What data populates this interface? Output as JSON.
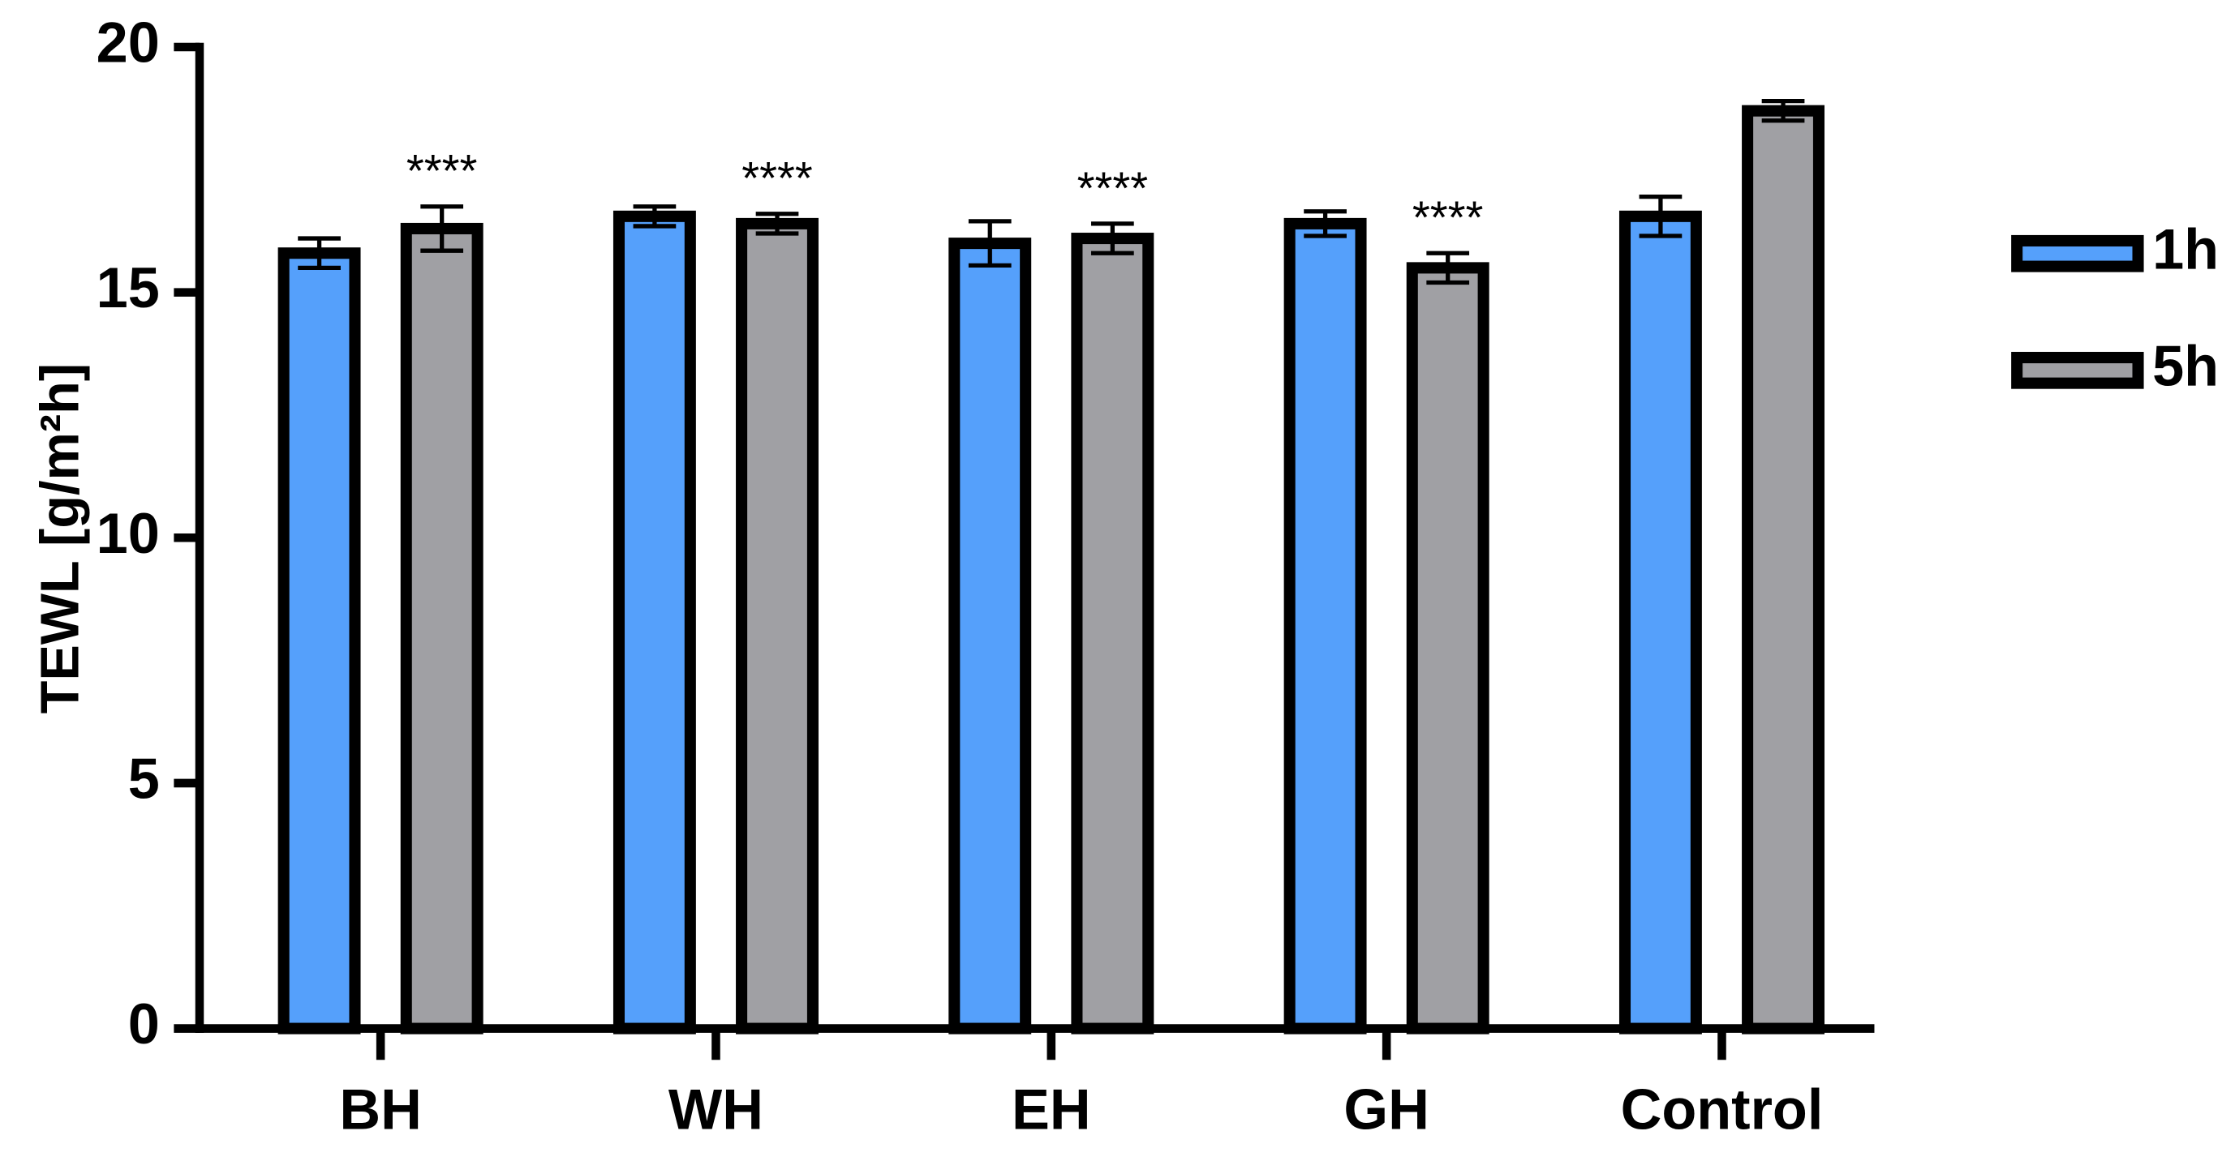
{
  "chart_data": {
    "type": "bar",
    "y_label": "TEWL [g/m²h]",
    "categories": [
      "BH",
      "WH",
      "EH",
      "GH",
      "Control"
    ],
    "series": [
      {
        "name": "1h",
        "color": "#55a0fb",
        "values": [
          15.8,
          16.55,
          16.0,
          16.4,
          16.55
        ],
        "errors": [
          0.3,
          0.2,
          0.45,
          0.25,
          0.4
        ]
      },
      {
        "name": "5h",
        "color": "#a0a0a4",
        "values": [
          16.3,
          16.4,
          16.1,
          15.5,
          18.7
        ],
        "errors": [
          0.45,
          0.2,
          0.3,
          0.3,
          0.2
        ],
        "annotations": [
          "****",
          "****",
          "****",
          "****",
          null
        ]
      }
    ],
    "ylim": [
      0,
      20
    ],
    "yticks": [
      0,
      5,
      10,
      15,
      20
    ],
    "legend": "right"
  }
}
